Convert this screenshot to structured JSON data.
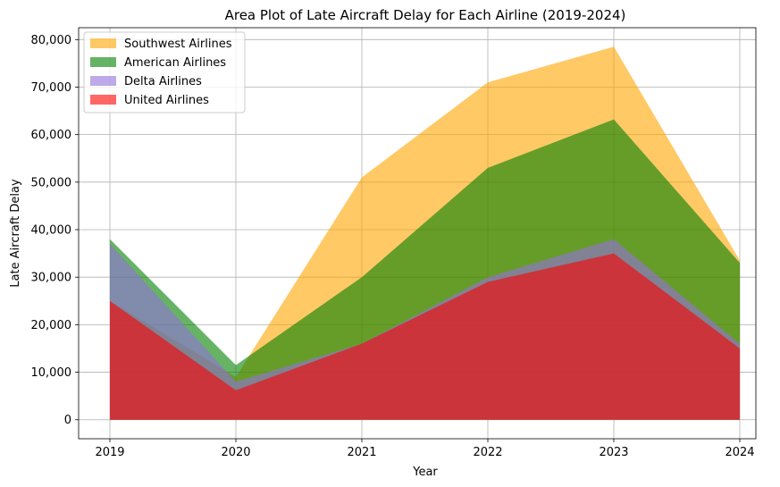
{
  "chart_data": {
    "type": "area",
    "title": "Area Plot of Late Aircraft Delay for Each Airline (2019-2024)",
    "xlabel": "Year",
    "ylabel": "Late Aircraft Delay",
    "x": [
      "2019",
      "2020",
      "2021",
      "2022",
      "2023",
      "2024"
    ],
    "ylim": [
      -4000,
      82500
    ],
    "yticks": [
      0,
      10000,
      20000,
      30000,
      40000,
      50000,
      60000,
      70000,
      80000
    ],
    "ytick_labels": [
      "0",
      "10,000",
      "20,000",
      "30,000",
      "40,000",
      "50,000",
      "60,000",
      "70,000",
      "80,000"
    ],
    "grid": true,
    "legend_position": "top-left",
    "series": [
      {
        "name": "Southwest Airlines",
        "color": "#ffa500",
        "opacity": 0.6,
        "values": [
          25000,
          9000,
          51000,
          71000,
          78500,
          33500
        ]
      },
      {
        "name": "American Airlines",
        "color": "#008000",
        "opacity": 0.6,
        "values": [
          38000,
          11500,
          30000,
          53000,
          63200,
          33000
        ]
      },
      {
        "name": "Delta Airlines",
        "color": "#9370db",
        "opacity": 0.6,
        "values": [
          37000,
          8000,
          16000,
          30000,
          38000,
          16000
        ]
      },
      {
        "name": "United Airlines",
        "color": "#ff0000",
        "opacity": 0.6,
        "values": [
          25000,
          6200,
          16000,
          29000,
          35000,
          15000
        ]
      }
    ]
  }
}
